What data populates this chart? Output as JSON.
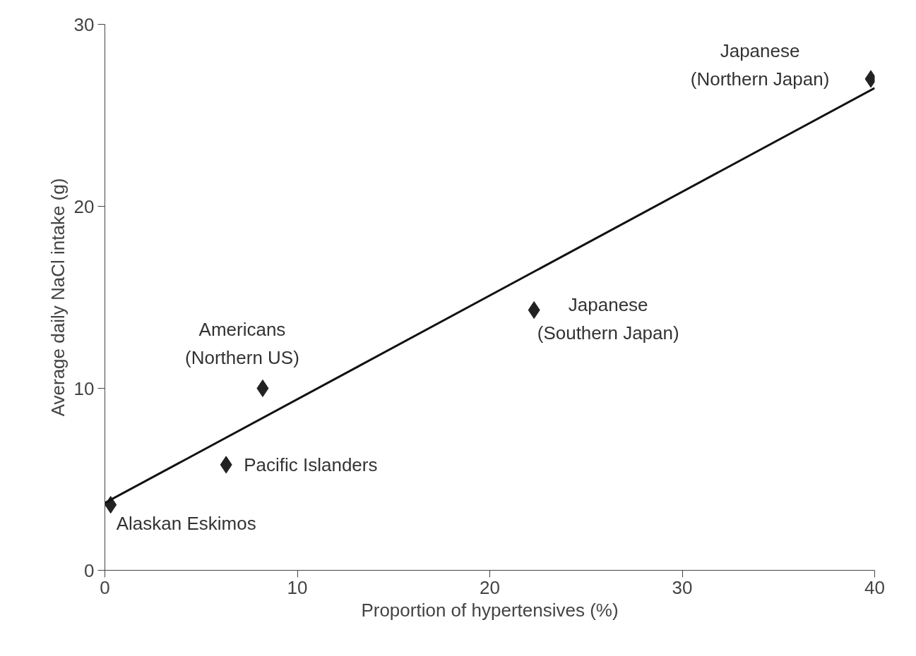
{
  "chart_data": {
    "type": "scatter",
    "xlabel": "Proportion of hypertensives (%)",
    "ylabel": "Average daily NaCl intake (g)",
    "xlim": [
      0,
      40
    ],
    "ylim": [
      0,
      30
    ],
    "xticks": [
      0,
      10,
      20,
      30,
      40
    ],
    "yticks": [
      0,
      10,
      20,
      30
    ],
    "grid": false,
    "marker": "diamond",
    "series": [
      {
        "color": "#222222",
        "x": [
          0.3,
          6.3,
          8.2,
          22.3,
          39.8
        ],
        "values": [
          3.6,
          5.8,
          10.0,
          14.3,
          27.0
        ]
      },
      {
        "type": "line",
        "color": "#111111",
        "x": [
          0,
          40
        ],
        "values": [
          3.7,
          26.5
        ],
        "line_style": "solid",
        "marker": "none"
      }
    ],
    "annotations": [
      {
        "text": "Alaskan Eskimos",
        "x": 0.3,
        "y": 3.6
      },
      {
        "text": "Pacific Islanders",
        "x": 6.3,
        "y": 5.8
      },
      {
        "text": "Americans\n(Northern US)",
        "x": 8.2,
        "y": 10.0
      },
      {
        "text": "Japanese\n(Southern Japan)",
        "x": 22.3,
        "y": 14.3
      },
      {
        "text": "Japanese\n(Northern Japan)",
        "x": 39.8,
        "y": 27.0
      }
    ]
  }
}
